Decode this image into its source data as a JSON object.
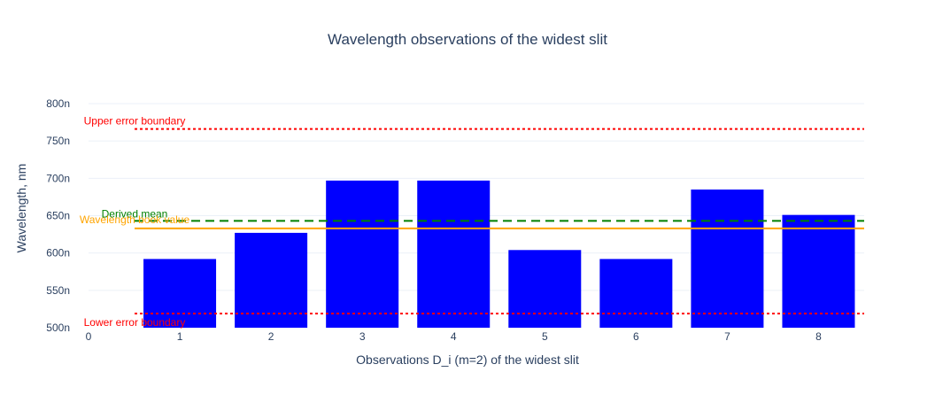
{
  "chart_data": {
    "type": "bar",
    "title": "Wavelength observations of the widest slit",
    "xlabel": "Observations D_i (m=2) of the widest slit",
    "ylabel": "Wavelength, nm",
    "x": [
      1,
      2,
      3,
      4,
      5,
      6,
      7,
      8
    ],
    "values": [
      592,
      627,
      697,
      697,
      604,
      592,
      685,
      651
    ],
    "xlim": [
      0,
      8.5
    ],
    "ylim": [
      500,
      800
    ],
    "x_ticks": [
      "0",
      "1",
      "2",
      "3",
      "4",
      "5",
      "6",
      "7",
      "8"
    ],
    "y_ticks": [
      {
        "value": 500,
        "label": "500n"
      },
      {
        "value": 550,
        "label": "550n"
      },
      {
        "value": 600,
        "label": "600n"
      },
      {
        "value": 650,
        "label": "650n"
      },
      {
        "value": 700,
        "label": "700n"
      },
      {
        "value": 750,
        "label": "750n"
      },
      {
        "value": 800,
        "label": "800n"
      }
    ],
    "bar_color": "#0000ff",
    "grid": true,
    "reference_lines": [
      {
        "label": "Upper error boundary",
        "value": 766,
        "color": "#ff0000",
        "style": "dotted"
      },
      {
        "label": "Derived mean",
        "value": 643,
        "color": "#008000",
        "style": "dashed"
      },
      {
        "label": "Wavelength book value",
        "value": 633,
        "color": "#ffa500",
        "style": "solid"
      },
      {
        "label": "Lower error boundary",
        "value": 519,
        "color": "#ff0000",
        "style": "dotted"
      }
    ]
  }
}
